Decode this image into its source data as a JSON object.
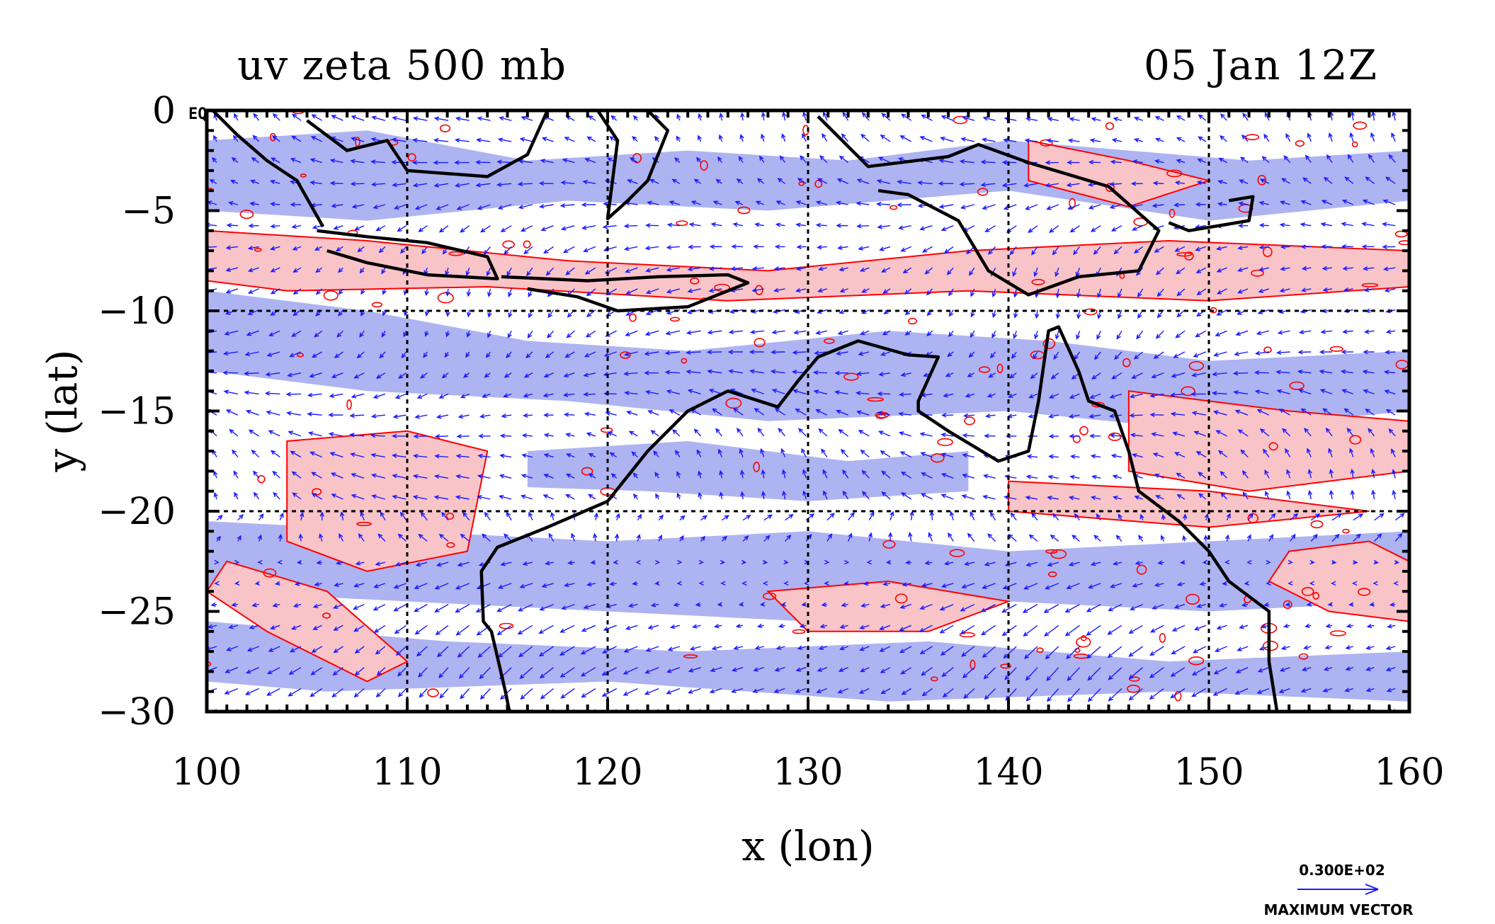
{
  "title_left": "uv zeta 500 mb",
  "title_right": "05 Jan 12Z",
  "corner_label": "EQ",
  "legend": {
    "value": "0.300E+02",
    "caption": "MAXIMUM VECTOR"
  },
  "colors": {
    "positive_fill": "#f8c4c8",
    "positive_contour": "#ff0000",
    "negative_fill": "#aab0f0",
    "vector": "#1a1aff",
    "coast": "#000000",
    "frame": "#000000"
  },
  "chart_data": {
    "type": "map",
    "xlabel": "x (lon)",
    "ylabel": "y (lat)",
    "xlim": [
      100,
      160
    ],
    "ylim": [
      -30,
      0
    ],
    "xticks": [
      "100",
      "110",
      "120",
      "130",
      "140",
      "150",
      "160"
    ],
    "yticks": [
      "0",
      "−5",
      "−10",
      "−15",
      "−20",
      "−25",
      "−30"
    ],
    "grid": true
  }
}
